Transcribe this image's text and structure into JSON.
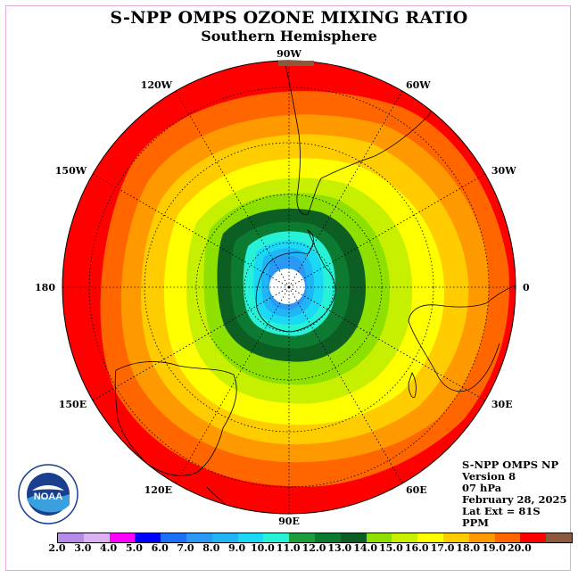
{
  "header": {
    "title": "S-NPP OMPS OZONE MIXING RATIO",
    "subtitle": "Southern Hemisphere"
  },
  "map": {
    "projection": "south-polar-stereographic",
    "longitude_labels": [
      {
        "text": "0",
        "lon": 0
      },
      {
        "text": "30E",
        "lon": 30
      },
      {
        "text": "60E",
        "lon": 60
      },
      {
        "text": "90E",
        "lon": 90
      },
      {
        "text": "120E",
        "lon": 120
      },
      {
        "text": "150E",
        "lon": 150
      },
      {
        "text": "180",
        "lon": 180
      },
      {
        "text": "150W",
        "lon": -150
      },
      {
        "text": "120W",
        "lon": -120
      },
      {
        "text": "90W",
        "lon": -90
      },
      {
        "text": "60W",
        "lon": -60
      },
      {
        "text": "30W",
        "lon": -30
      }
    ],
    "graticule": "dotted",
    "pole_fill": "#ffffff",
    "max_value_rim_color": "#ff0000"
  },
  "info": {
    "line1": "S-NPP OMPS NP",
    "line2": "Version 8",
    "line3": "07 hPa",
    "line4": "February 28, 2025",
    "line5": "Lat Ext = 81S",
    "line6": "PPM"
  },
  "colorbar": {
    "ticks": [
      "2.0",
      "3.0",
      "4.0",
      "5.0",
      "6.0",
      "7.0",
      "8.0",
      "9.0",
      "10.0",
      "11.0",
      "12.0",
      "13.0",
      "14.0",
      "15.0",
      "16.0",
      "17.0",
      "18.0",
      "19.0",
      "20.0"
    ],
    "colors": [
      "#b78be8",
      "#dcb2f4",
      "#ff00ff",
      "#0000ff",
      "#1c6ff7",
      "#2a98f5",
      "#1fb5f6",
      "#1bd8f5",
      "#27f2d8",
      "#1c9e3c",
      "#0c7a30",
      "#0d5e22",
      "#8ee000",
      "#c6f000",
      "#ffff00",
      "#ffcc00",
      "#ff9900",
      "#ff6600",
      "#ff0000",
      "#8b5a3c"
    ]
  },
  "logo": {
    "text": "NOAA",
    "ring_text": "NATIONAL OCEANIC AND ATMOSPHERIC ADMINISTRATION · U.S. DEPARTMENT OF COMMERCE"
  }
}
